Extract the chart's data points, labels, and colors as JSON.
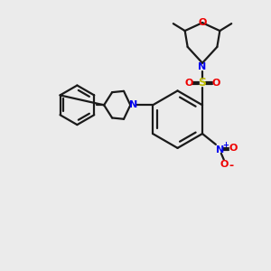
{
  "bg_color": "#ebebeb",
  "bond_color": "#1a1a1a",
  "n_color": "#0000ee",
  "o_color": "#ee0000",
  "s_color": "#bbbb00",
  "lw": 1.6,
  "figsize": [
    3.0,
    3.0
  ],
  "dpi": 100,
  "xlim": [
    0,
    300
  ],
  "ylim": [
    0,
    300
  ]
}
